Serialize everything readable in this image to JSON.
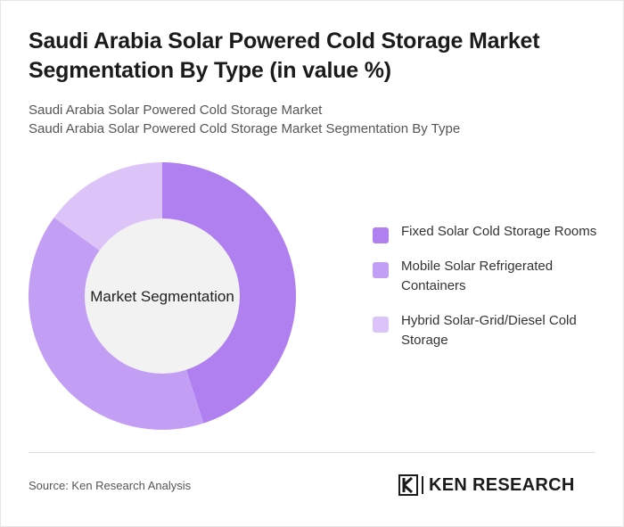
{
  "header": {
    "title": "Saudi Arabia Solar Powered Cold Storage Market Segmentation By Type (in value %)",
    "subtitle_line1": "Saudi Arabia Solar Powered Cold Storage Market",
    "subtitle_line2": "Saudi Arabia Solar Powered Cold Storage Market Segmentation By Type"
  },
  "chart_data": {
    "type": "pie",
    "donut": true,
    "center_label": "Market Segmentation",
    "categories": [
      "Fixed Solar Cold Storage Rooms",
      "Mobile Solar Refrigerated Containers",
      "Hybrid Solar-Grid/Diesel Cold Storage"
    ],
    "values": [
      45,
      40,
      15
    ],
    "colors": [
      "#b07ff0",
      "#c39ef5",
      "#dcc4f9"
    ],
    "legend_position": "right"
  },
  "legend": {
    "items": [
      {
        "label": "Fixed Solar Cold Storage Rooms",
        "color": "#b07ff0"
      },
      {
        "label": "Mobile Solar Refrigerated Containers",
        "color": "#c39ef5"
      },
      {
        "label": "Hybrid Solar-Grid/Diesel Cold Storage",
        "color": "#dcc4f9"
      }
    ]
  },
  "footer": {
    "source": "Source: Ken Research Analysis",
    "logo_text": "KEN RESEARCH"
  }
}
